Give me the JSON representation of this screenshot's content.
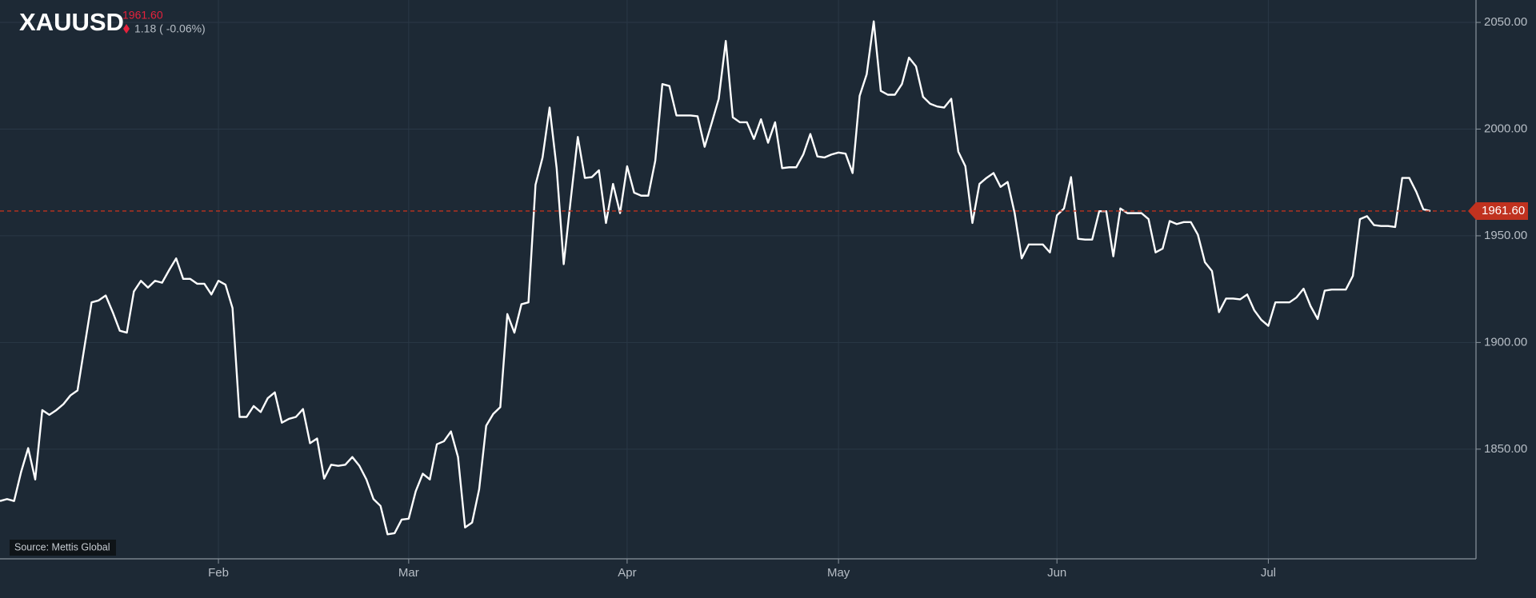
{
  "chart_data": {
    "type": "line",
    "title": "XAUUSD",
    "last_price": {
      "value": 1961.6,
      "label": "1961.60"
    },
    "change": "1.18 ( -0.06%)",
    "source": "Source: Mettis Global",
    "color": "#ffffff",
    "price_color": "#c0321f",
    "grid": true,
    "categories": [
      null,
      null,
      null,
      null,
      null,
      null,
      null,
      null,
      null,
      null,
      null,
      null,
      null,
      null,
      null,
      null,
      null,
      null,
      null,
      null,
      null,
      null,
      null,
      null,
      null,
      null,
      null,
      null,
      null,
      null,
      null,
      "Feb",
      null,
      null,
      null,
      null,
      null,
      null,
      null,
      null,
      null,
      null,
      null,
      null,
      null,
      null,
      null,
      null,
      null,
      null,
      null,
      null,
      null,
      null,
      null,
      null,
      null,
      null,
      "Mar",
      null,
      null,
      null,
      null,
      null,
      null,
      null,
      null,
      null,
      null,
      null,
      null,
      null,
      null,
      null,
      null,
      null,
      null,
      null,
      null,
      null,
      null,
      null,
      null,
      null,
      null,
      null,
      null,
      null,
      null,
      "Apr",
      null,
      null,
      null,
      null,
      null,
      null,
      null,
      null,
      null,
      null,
      null,
      null,
      null,
      null,
      null,
      null,
      null,
      null,
      null,
      null,
      null,
      null,
      null,
      null,
      null,
      null,
      null,
      null,
      null,
      "May",
      null,
      null,
      null,
      null,
      null,
      null,
      null,
      null,
      null,
      null,
      null,
      null,
      null,
      null,
      null,
      null,
      null,
      null,
      null,
      null,
      null,
      null,
      null,
      null,
      null,
      null,
      null,
      null,
      null,
      null,
      "Jun",
      null,
      null,
      null,
      null,
      null,
      null,
      null,
      null,
      null,
      null,
      null,
      null,
      null,
      null,
      null,
      null,
      null,
      null,
      null,
      null,
      null,
      null,
      null,
      null,
      null,
      null,
      null,
      null,
      null,
      "Jul",
      null,
      null,
      null,
      null,
      null,
      null,
      null,
      null,
      null,
      null,
      null,
      null,
      null,
      null,
      null,
      null,
      null,
      null,
      null,
      null,
      null,
      null,
      null
    ],
    "values": [
      1825.7,
      1826.6,
      1825.7,
      1839.4,
      1850.5,
      1835.8,
      1868.3,
      1866.1,
      1868.3,
      1871.1,
      1875.2,
      1877.5,
      1898.2,
      1918.8,
      1919.7,
      1922,
      1914.2,
      1905.5,
      1904.6,
      1923.9,
      1928.9,
      1925.7,
      1928.9,
      1928,
      1933.9,
      1939.4,
      1929.8,
      1929.8,
      1927.5,
      1927.5,
      1922.5,
      1928.9,
      1927.1,
      1916.1,
      1865.1,
      1865.1,
      1870.2,
      1867.4,
      1873.9,
      1876.6,
      1862.4,
      1864.2,
      1865.1,
      1868.8,
      1852.8,
      1855,
      1836.2,
      1842.7,
      1842.2,
      1842.7,
      1846.3,
      1842.2,
      1835.8,
      1826.6,
      1823.4,
      1810.1,
      1810.6,
      1817,
      1817.4,
      1830.3,
      1838.5,
      1835.8,
      1852.3,
      1853.7,
      1858.3,
      1846.3,
      1813.3,
      1815.6,
      1831.2,
      1861,
      1866.5,
      1869.7,
      1913.3,
      1904.6,
      1917.9,
      1918.8,
      1973.9,
      1986.7,
      2010.1,
      1981.7,
      1936.7,
      1967,
      1996.3,
      1977.1,
      1977.5,
      1980.7,
      1956,
      1974.3,
      1960.6,
      1982.6,
      1970.2,
      1968.8,
      1968.8,
      1985.3,
      2021.1,
      2020.2,
      2006.4,
      2006.4,
      2006.4,
      2006,
      1991.7,
      2002.8,
      2014.2,
      2041.3,
      2005.5,
      2003.2,
      2003.2,
      1995.4,
      2004.6,
      1993.6,
      2003.2,
      1981.7,
      1982.1,
      1982.1,
      1988.1,
      1997.7,
      1987.2,
      1986.7,
      1988.1,
      1989,
      1988.5,
      1979.4,
      2015.6,
      2025.7,
      2050.5,
      2017.9,
      2016.1,
      2016.1,
      2021.1,
      2033.5,
      2029.4,
      2015.1,
      2011.9,
      2010.6,
      2010.1,
      2014.2,
      1989.4,
      1982.6,
      1956,
      1974.3,
      1977.1,
      1979.4,
      1972.9,
      1975.2,
      1960.6,
      1939.4,
      1945.9,
      1945.9,
      1945.9,
      1942.2,
      1959.6,
      1962.8,
      1977.5,
      1948.6,
      1948.2,
      1948.2,
      1961.5,
      1961.5,
      1940.4,
      1962.8,
      1960.6,
      1960.6,
      1960.6,
      1957.8,
      1942.2,
      1944,
      1956.9,
      1955.5,
      1956.4,
      1956.4,
      1950.5,
      1937.6,
      1933.5,
      1914.2,
      1920.6,
      1920.6,
      1920.2,
      1922.5,
      1915.1,
      1910.6,
      1907.8,
      1918.8,
      1918.8,
      1918.8,
      1921.1,
      1925.2,
      1917,
      1911,
      1924.3,
      1924.8,
      1924.8,
      1924.8,
      1931.2,
      1957.8,
      1959.2,
      1955,
      1954.6,
      1954.6,
      1954.1,
      1977.1,
      1977.1,
      1970.6,
      1962.4,
      1961.6
    ],
    "ylim": [
      1798.6,
      2060.5
    ],
    "yticks": [
      {
        "value": 1850,
        "label": "1850.00"
      },
      {
        "value": 1900,
        "label": "1900.00"
      },
      {
        "value": 1950,
        "label": "1950.00"
      },
      {
        "value": 2000,
        "label": "2000.00"
      },
      {
        "value": 2050,
        "label": "2050.00"
      }
    ]
  }
}
